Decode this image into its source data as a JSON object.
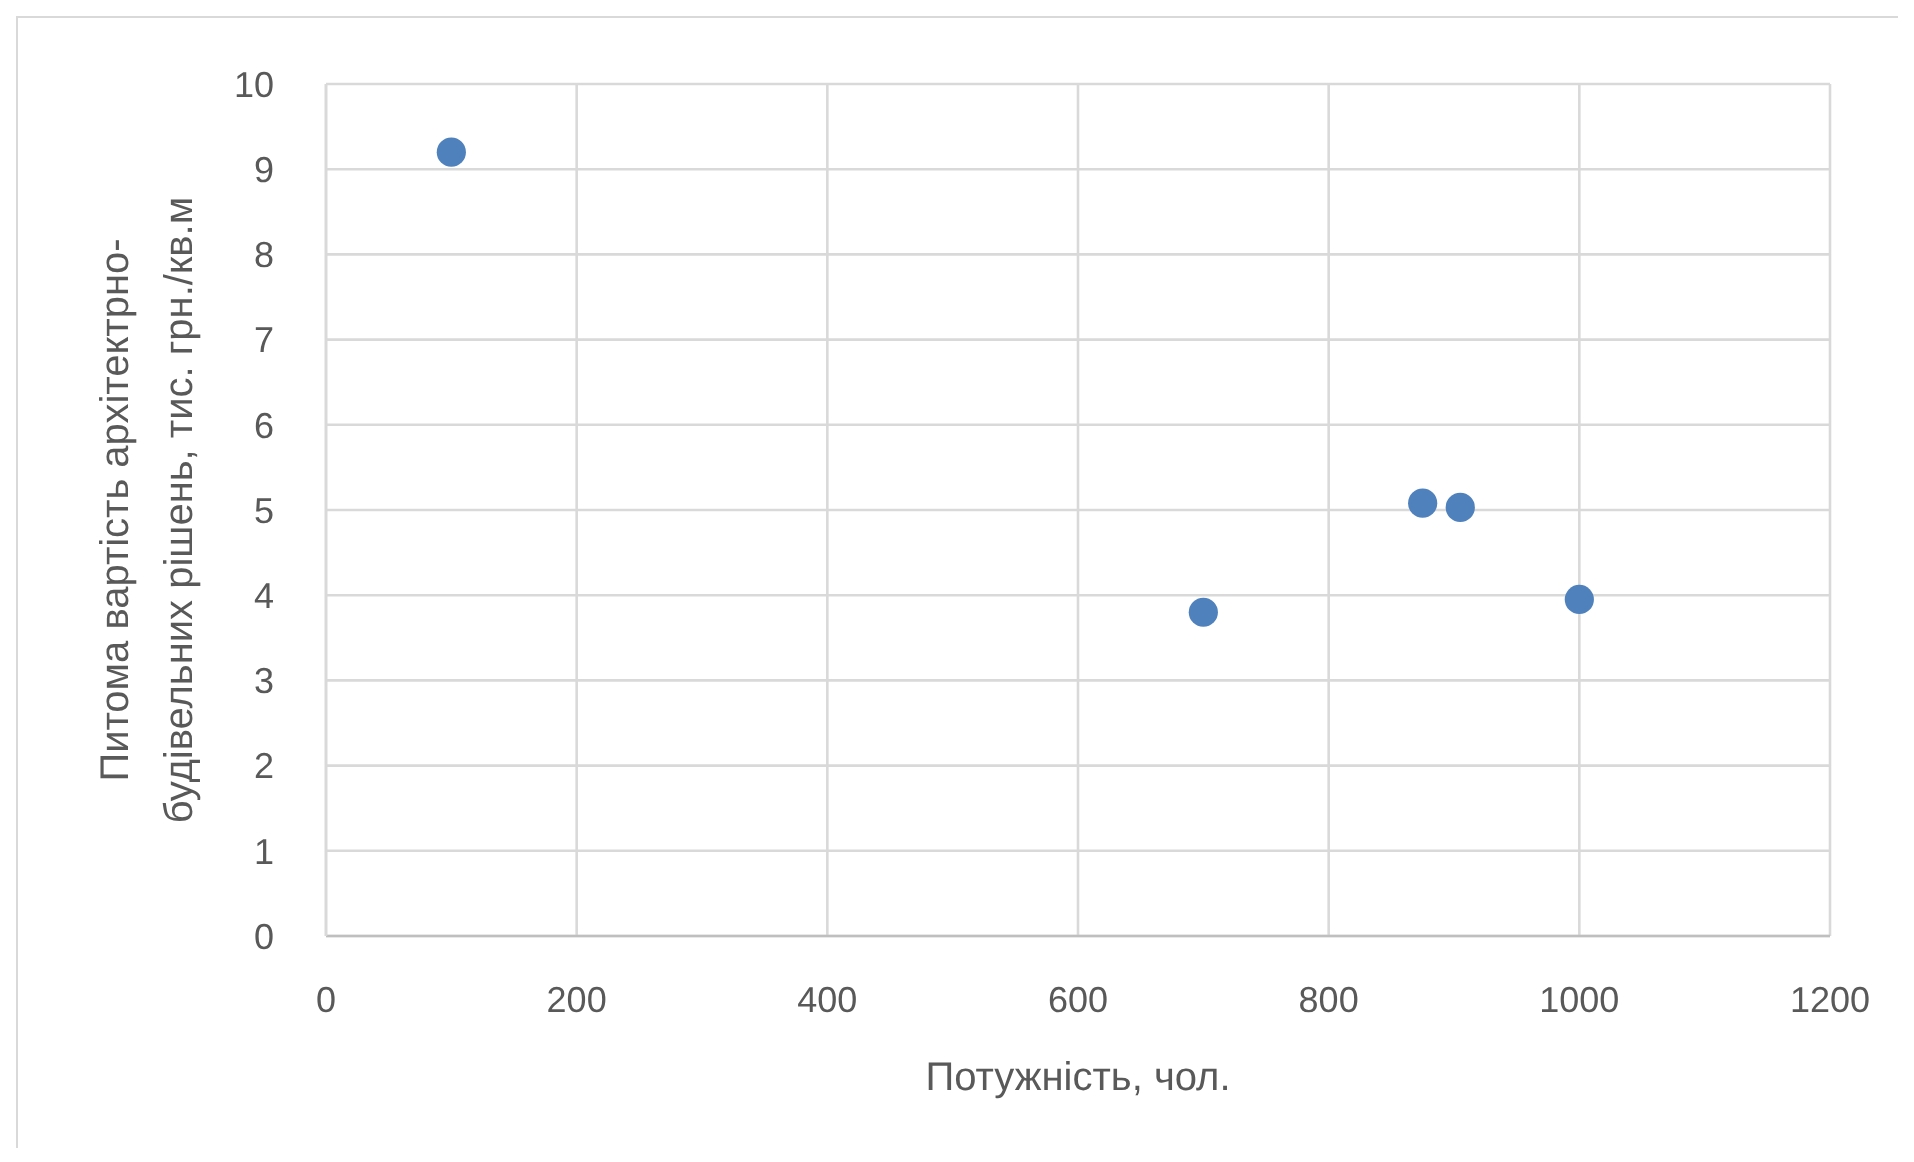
{
  "chart_data": {
    "type": "scatter",
    "xlabel": "Потужність, чол.",
    "ylabel": "Питома вартість архітектрно-будівельних рішень, тис. грн./кв.м",
    "x": [
      100,
      700,
      875,
      905,
      1000
    ],
    "values": [
      9.2,
      3.8,
      5.08,
      5.03,
      3.95
    ],
    "color": "#4f81bd",
    "xlim": [
      0,
      1200
    ],
    "xticks": [
      0,
      200,
      400,
      600,
      800,
      1000,
      1200
    ],
    "ylim": [
      0,
      10
    ],
    "yticks": [
      0,
      1,
      2,
      3,
      4,
      5,
      6,
      7,
      8,
      9,
      10
    ],
    "grid": true,
    "marker": "circle"
  }
}
